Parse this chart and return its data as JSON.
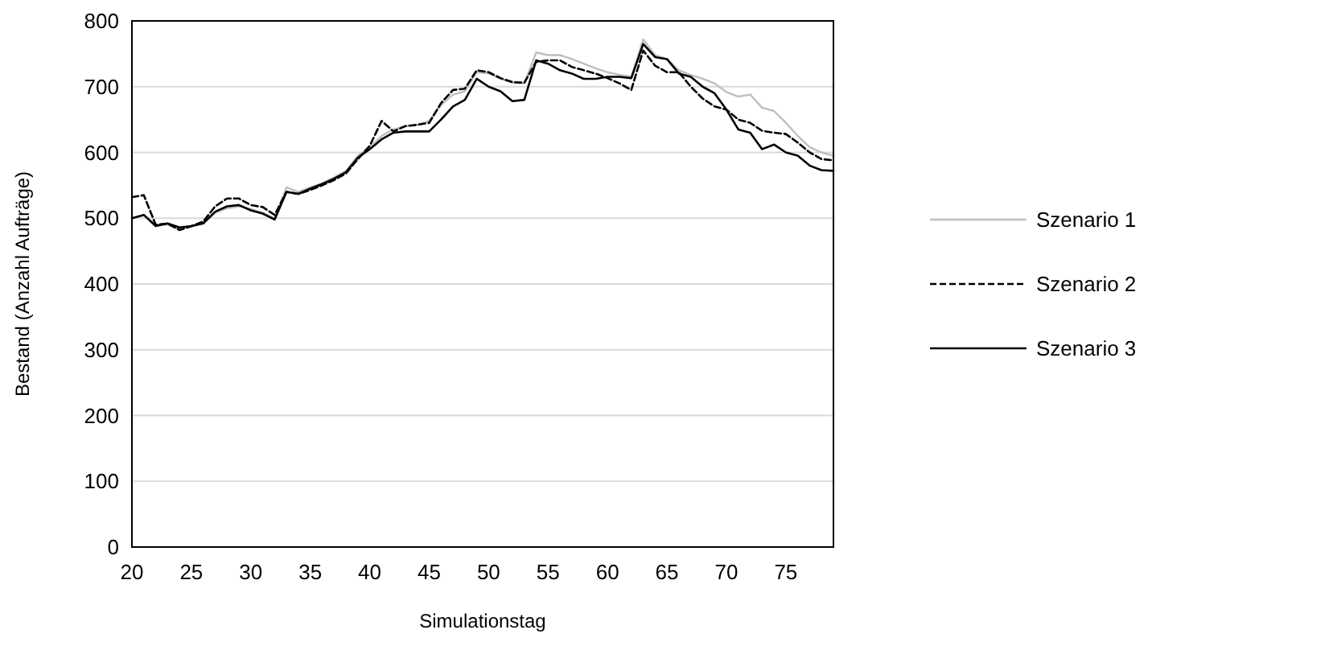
{
  "chart_data": {
    "type": "line",
    "xlabel": "Simulationstag",
    "ylabel": "Bestand (Anzahl Aufträge)",
    "x": [
      20,
      21,
      22,
      23,
      24,
      25,
      26,
      27,
      28,
      29,
      30,
      31,
      32,
      33,
      34,
      35,
      36,
      37,
      38,
      39,
      40,
      41,
      42,
      43,
      44,
      45,
      46,
      47,
      48,
      49,
      50,
      51,
      52,
      53,
      54,
      55,
      56,
      57,
      58,
      59,
      60,
      61,
      62,
      63,
      64,
      65,
      66,
      67,
      68,
      69,
      70,
      71,
      72,
      73,
      74,
      75,
      76,
      77,
      78,
      79
    ],
    "series": [
      {
        "name": "Szenario 1",
        "color": "#bfbfbf",
        "line_style": "solid",
        "values": [
          500,
          505,
          490,
          490,
          483,
          487,
          493,
          508,
          515,
          518,
          514,
          508,
          500,
          547,
          540,
          547,
          553,
          562,
          572,
          595,
          608,
          625,
          635,
          640,
          642,
          648,
          672,
          688,
          693,
          722,
          720,
          712,
          706,
          705,
          752,
          748,
          748,
          742,
          735,
          728,
          722,
          718,
          715,
          772,
          748,
          742,
          725,
          718,
          712,
          705,
          692,
          685,
          688,
          668,
          663,
          645,
          625,
          608,
          600,
          595
        ]
      },
      {
        "name": "Szenario 2",
        "color": "#000000",
        "line_style": "dashed",
        "values": [
          532,
          535,
          490,
          492,
          482,
          488,
          495,
          518,
          530,
          530,
          520,
          517,
          505,
          540,
          537,
          543,
          550,
          558,
          568,
          590,
          610,
          648,
          632,
          640,
          642,
          645,
          675,
          695,
          697,
          725,
          722,
          713,
          707,
          706,
          738,
          740,
          740,
          730,
          725,
          720,
          713,
          705,
          695,
          755,
          732,
          722,
          722,
          700,
          682,
          670,
          665,
          650,
          645,
          633,
          630,
          628,
          615,
          600,
          590,
          588
        ]
      },
      {
        "name": "Szenario 3",
        "color": "#000000",
        "line_style": "solid",
        "values": [
          500,
          505,
          488,
          492,
          486,
          488,
          492,
          510,
          518,
          520,
          512,
          507,
          498,
          540,
          537,
          545,
          552,
          560,
          570,
          592,
          605,
          620,
          630,
          632,
          632,
          632,
          650,
          670,
          680,
          712,
          700,
          693,
          678,
          680,
          740,
          735,
          725,
          720,
          712,
          712,
          715,
          715,
          713,
          765,
          745,
          742,
          720,
          715,
          700,
          690,
          665,
          635,
          630,
          605,
          612,
          600,
          595,
          580,
          573,
          572
        ]
      }
    ],
    "xlim": [
      20,
      79
    ],
    "xticks": [
      20,
      25,
      30,
      35,
      40,
      45,
      50,
      55,
      60,
      65,
      70,
      75
    ],
    "ylim": [
      0,
      800
    ],
    "yticks": [
      0,
      100,
      200,
      300,
      400,
      500,
      600,
      700,
      800
    ],
    "grid": "y",
    "legend": "right"
  }
}
